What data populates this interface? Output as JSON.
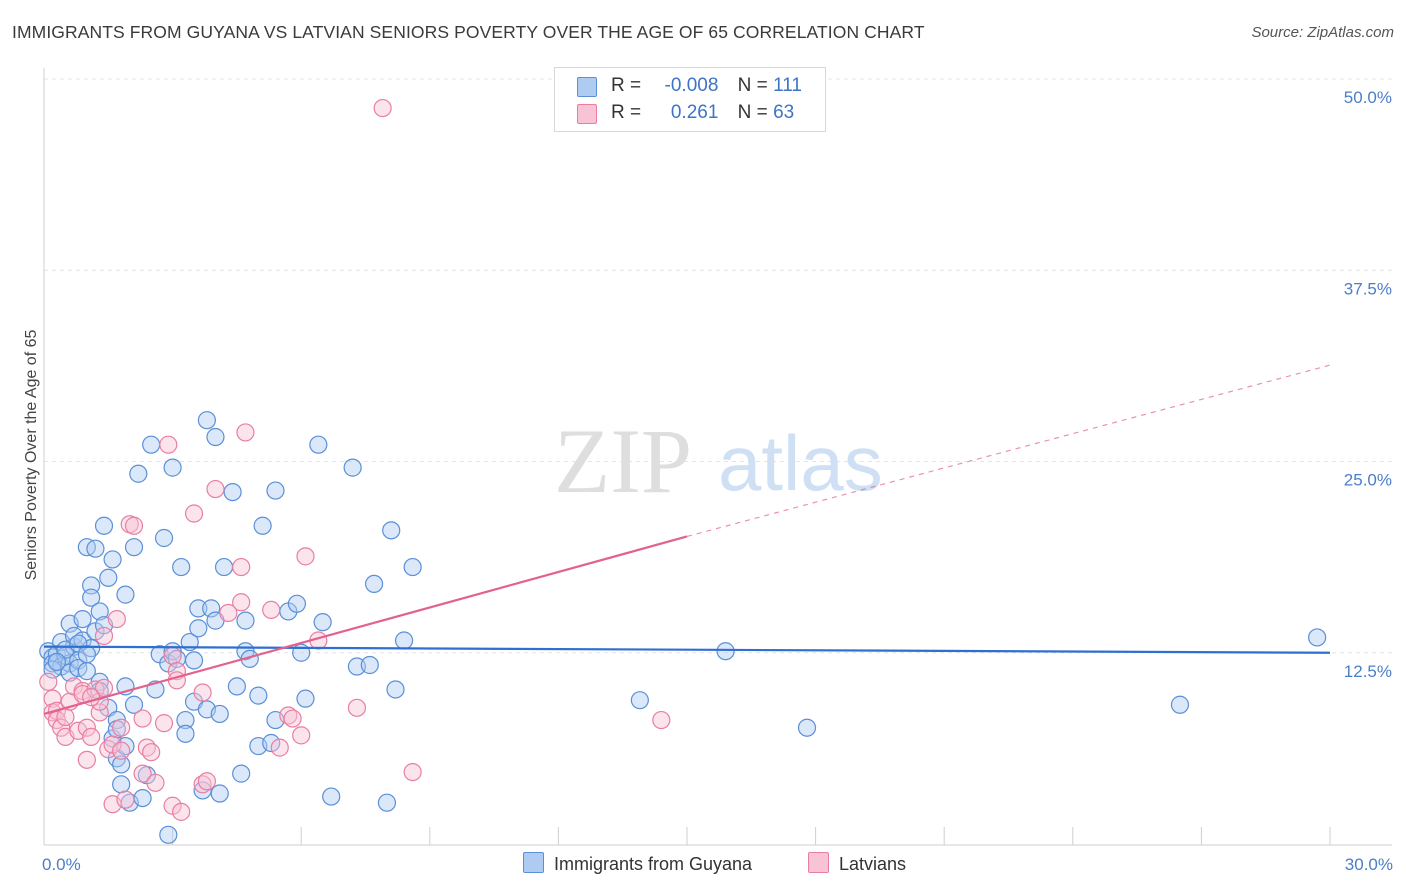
{
  "title": "IMMIGRANTS FROM GUYANA VS LATVIAN SENIORS POVERTY OVER THE AGE OF 65 CORRELATION CHART",
  "source": "Source: ZipAtlas.com",
  "watermark": {
    "zip": "ZIP",
    "atlas": "atlas"
  },
  "legend_stats": [
    {
      "r_label": "R =",
      "r_value": "-0.008",
      "n_label": "N =",
      "n_value": "111",
      "color": "#9fc0ee"
    },
    {
      "r_label": "R =",
      "r_value": "0.261",
      "n_label": "N =",
      "n_value": "63",
      "color": "#f5b3c8"
    }
  ],
  "chart_data": {
    "type": "scatter",
    "title": "IMMIGRANTS FROM GUYANA VS LATVIAN SENIORS POVERTY OVER THE AGE OF 65 CORRELATION CHART",
    "xlabel": "",
    "ylabel": "Seniors Poverty Over the Age of 65",
    "xlim": [
      0,
      30
    ],
    "ylim": [
      0,
      50
    ],
    "x_tick_labels": [
      "0.0%",
      "30.0%"
    ],
    "y_ticks": [
      12.5,
      25,
      37.5,
      50
    ],
    "y_tick_labels": [
      "12.5%",
      "25.0%",
      "37.5%",
      "50.0%"
    ],
    "grid": true,
    "legend_position": "top-center",
    "series": [
      {
        "name": "Immigrants from Guyana",
        "color": "#5b8fd8",
        "fill": "#aecbf2",
        "trend": {
          "x0": 0,
          "y0": 12.9,
          "x1": 30,
          "y1": 12.5,
          "color": "#2f6fcf"
        },
        "points": [
          [
            0.1,
            12.6
          ],
          [
            0.2,
            12.2
          ],
          [
            0.2,
            11.8
          ],
          [
            0.3,
            12.4
          ],
          [
            0.3,
            11.9
          ],
          [
            0.4,
            11.6
          ],
          [
            0.4,
            13.2
          ],
          [
            0.5,
            12.3
          ],
          [
            0.6,
            11.8
          ],
          [
            0.6,
            11.2
          ],
          [
            0.6,
            14.4
          ],
          [
            0.7,
            12.9
          ],
          [
            0.7,
            13.6
          ],
          [
            0.8,
            12.0
          ],
          [
            0.8,
            11.5
          ],
          [
            0.9,
            13.3
          ],
          [
            0.9,
            14.7
          ],
          [
            1.0,
            11.3
          ],
          [
            1.0,
            19.4
          ],
          [
            1.1,
            16.9
          ],
          [
            1.1,
            16.1
          ],
          [
            1.1,
            12.8
          ],
          [
            1.2,
            19.3
          ],
          [
            1.2,
            13.9
          ],
          [
            1.3,
            15.2
          ],
          [
            1.3,
            10.6
          ],
          [
            1.4,
            20.8
          ],
          [
            1.4,
            14.3
          ],
          [
            1.5,
            8.9
          ],
          [
            1.5,
            17.4
          ],
          [
            1.6,
            18.6
          ],
          [
            1.6,
            6.9
          ],
          [
            1.7,
            8.1
          ],
          [
            1.7,
            7.5
          ],
          [
            1.7,
            5.6
          ],
          [
            1.8,
            5.2
          ],
          [
            1.8,
            3.9
          ],
          [
            1.9,
            10.3
          ],
          [
            1.9,
            16.3
          ],
          [
            1.9,
            6.4
          ],
          [
            2.0,
            2.7
          ],
          [
            2.1,
            19.4
          ],
          [
            2.1,
            9.1
          ],
          [
            2.2,
            24.2
          ],
          [
            2.3,
            3.0
          ],
          [
            2.4,
            4.5
          ],
          [
            2.5,
            26.1
          ],
          [
            2.7,
            12.4
          ],
          [
            2.8,
            20.0
          ],
          [
            2.9,
            11.8
          ],
          [
            3.0,
            12.6
          ],
          [
            3.0,
            24.6
          ],
          [
            3.1,
            12.1
          ],
          [
            3.2,
            18.1
          ],
          [
            3.3,
            8.1
          ],
          [
            3.3,
            7.2
          ],
          [
            3.4,
            13.2
          ],
          [
            3.5,
            9.3
          ],
          [
            3.6,
            15.4
          ],
          [
            3.7,
            3.5
          ],
          [
            3.8,
            8.8
          ],
          [
            3.8,
            27.7
          ],
          [
            3.9,
            15.4
          ],
          [
            4.0,
            14.6
          ],
          [
            4.0,
            26.6
          ],
          [
            4.1,
            8.5
          ],
          [
            4.1,
            3.3
          ],
          [
            4.2,
            18.1
          ],
          [
            4.4,
            23.0
          ],
          [
            4.5,
            10.3
          ],
          [
            4.6,
            4.6
          ],
          [
            4.7,
            12.6
          ],
          [
            4.7,
            14.6
          ],
          [
            5.0,
            6.4
          ],
          [
            5.0,
            9.7
          ],
          [
            5.1,
            20.8
          ],
          [
            5.3,
            6.6
          ],
          [
            5.4,
            8.1
          ],
          [
            5.4,
            23.1
          ],
          [
            5.7,
            15.2
          ],
          [
            5.9,
            15.7
          ],
          [
            6.0,
            12.5
          ],
          [
            6.1,
            9.5
          ],
          [
            6.4,
            26.1
          ],
          [
            6.5,
            14.5
          ],
          [
            6.7,
            3.1
          ],
          [
            7.2,
            24.6
          ],
          [
            7.3,
            11.6
          ],
          [
            7.6,
            11.7
          ],
          [
            7.7,
            17.0
          ],
          [
            8.0,
            2.7
          ],
          [
            8.1,
            20.5
          ],
          [
            8.2,
            10.1
          ],
          [
            8.4,
            13.3
          ],
          [
            8.6,
            18.1
          ],
          [
            13.9,
            9.4
          ],
          [
            15.9,
            12.6
          ],
          [
            17.8,
            7.6
          ],
          [
            26.5,
            9.1
          ],
          [
            29.7,
            13.5
          ],
          [
            0.2,
            11.4
          ],
          [
            0.5,
            12.7
          ],
          [
            0.8,
            13.1
          ],
          [
            1.0,
            12.4
          ],
          [
            2.6,
            10.1
          ],
          [
            3.5,
            12.0
          ],
          [
            4.8,
            12.1
          ],
          [
            2.9,
            0.6
          ],
          [
            3.6,
            14.1
          ],
          [
            1.3,
            10.0
          ],
          [
            0.3,
            11.9
          ]
        ]
      },
      {
        "name": "Latvians",
        "color": "#e87fa3",
        "fill": "#f8c3d4",
        "trend": {
          "x0": 0,
          "y0": 8.5,
          "x1": 15,
          "y1": 20.1,
          "color": "#e2628e",
          "dash_x1": 30,
          "dash_y1": 31.3
        },
        "points": [
          [
            0.1,
            10.6
          ],
          [
            0.2,
            9.5
          ],
          [
            0.2,
            8.6
          ],
          [
            0.3,
            8.7
          ],
          [
            0.3,
            8.1
          ],
          [
            0.4,
            7.6
          ],
          [
            0.5,
            8.3
          ],
          [
            0.5,
            7.0
          ],
          [
            0.6,
            9.3
          ],
          [
            0.7,
            10.3
          ],
          [
            0.8,
            7.4
          ],
          [
            0.9,
            10.0
          ],
          [
            0.9,
            9.8
          ],
          [
            1.0,
            7.6
          ],
          [
            1.0,
            5.5
          ],
          [
            1.1,
            7.0
          ],
          [
            1.2,
            10.1
          ],
          [
            1.3,
            8.6
          ],
          [
            1.3,
            9.3
          ],
          [
            1.4,
            13.6
          ],
          [
            1.4,
            10.2
          ],
          [
            1.5,
            6.2
          ],
          [
            1.6,
            6.5
          ],
          [
            1.6,
            2.6
          ],
          [
            1.7,
            14.7
          ],
          [
            1.8,
            7.6
          ],
          [
            1.8,
            6.1
          ],
          [
            1.9,
            2.9
          ],
          [
            2.0,
            20.9
          ],
          [
            2.1,
            20.8
          ],
          [
            2.3,
            8.2
          ],
          [
            2.3,
            4.6
          ],
          [
            2.4,
            6.3
          ],
          [
            2.5,
            6.0
          ],
          [
            2.6,
            4.0
          ],
          [
            2.8,
            7.9
          ],
          [
            2.9,
            26.1
          ],
          [
            3.0,
            2.5
          ],
          [
            3.0,
            12.3
          ],
          [
            3.1,
            11.3
          ],
          [
            3.1,
            10.7
          ],
          [
            3.2,
            2.1
          ],
          [
            3.5,
            21.6
          ],
          [
            3.7,
            9.9
          ],
          [
            3.7,
            3.9
          ],
          [
            3.8,
            4.1
          ],
          [
            4.0,
            23.2
          ],
          [
            4.3,
            15.1
          ],
          [
            4.6,
            15.8
          ],
          [
            4.6,
            18.1
          ],
          [
            4.7,
            26.9
          ],
          [
            5.3,
            15.3
          ],
          [
            5.5,
            6.3
          ],
          [
            5.7,
            8.4
          ],
          [
            5.8,
            8.2
          ],
          [
            6.0,
            7.1
          ],
          [
            6.1,
            18.8
          ],
          [
            6.4,
            13.3
          ],
          [
            7.3,
            8.9
          ],
          [
            7.9,
            48.1
          ],
          [
            8.6,
            4.7
          ],
          [
            14.4,
            8.1
          ],
          [
            1.1,
            9.6
          ]
        ]
      }
    ]
  }
}
